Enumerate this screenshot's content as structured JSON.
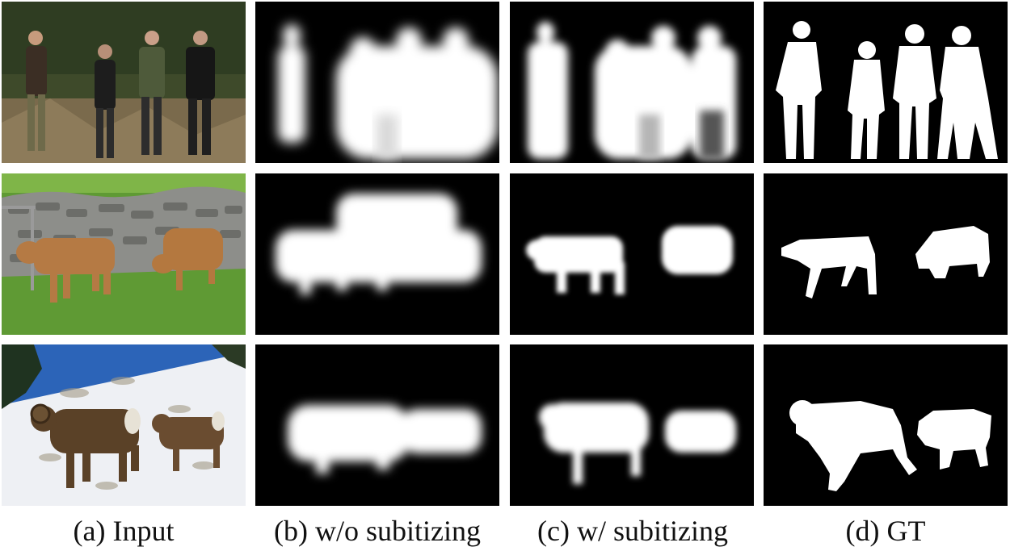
{
  "figure": {
    "captions": [
      "(a) Input",
      "(b) w/o subitizing",
      "(c) w/ subitizing",
      "(d) GT"
    ],
    "rows": [
      {
        "scene": "four-people-band",
        "subject_count": 4
      },
      {
        "scene": "two-calves-stone-wall",
        "subject_count": 2
      },
      {
        "scene": "two-bighorn-sheep-snow",
        "subject_count": 2
      }
    ]
  },
  "colors": {
    "background": "#ffffff",
    "mask_bg": "#000000",
    "mask_fg": "#ffffff",
    "grass": "#5f9a34",
    "snow": "#eef0f4",
    "sky": "#2c64b8"
  }
}
